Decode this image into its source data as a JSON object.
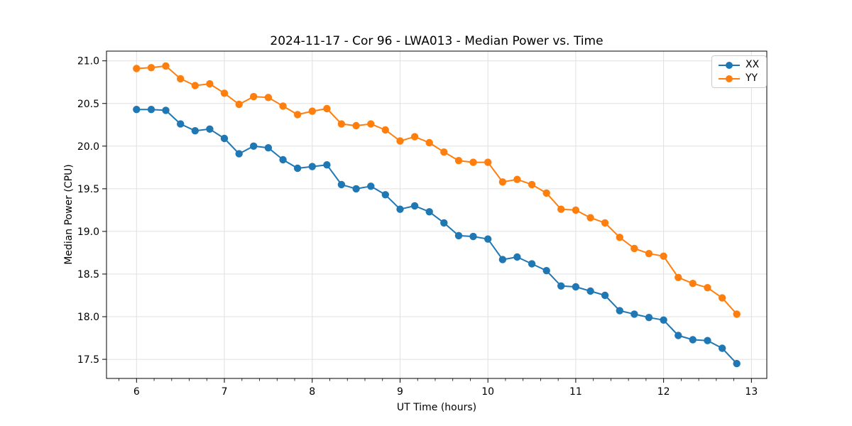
{
  "chart_data": {
    "type": "line",
    "title": "2024-11-17 - Cor 96 - LWA013 - Median Power vs. Time",
    "xlabel": "UT Time (hours)",
    "ylabel": "Median Power (CPU)",
    "xlim": [
      5.658,
      13.175
    ],
    "ylim": [
      17.276,
      21.114
    ],
    "x_ticks": [
      6,
      7,
      8,
      9,
      10,
      11,
      12,
      13
    ],
    "x_minor_tick_step": 0.2,
    "y_ticks": [
      17.5,
      18.0,
      18.5,
      19.0,
      19.5,
      20.0,
      20.5,
      21.0
    ],
    "grid": true,
    "grid_color": "#e0e0e0",
    "legend_position": "upper right",
    "x": [
      6.0,
      6.167,
      6.333,
      6.5,
      6.667,
      6.833,
      7.0,
      7.167,
      7.333,
      7.5,
      7.667,
      7.833,
      8.0,
      8.167,
      8.333,
      8.5,
      8.667,
      8.833,
      9.0,
      9.167,
      9.333,
      9.5,
      9.667,
      9.833,
      10.0,
      10.167,
      10.333,
      10.5,
      10.667,
      10.833,
      11.0,
      11.167,
      11.333,
      11.5,
      11.667,
      11.833,
      12.0,
      12.167,
      12.333,
      12.5,
      12.667,
      12.833
    ],
    "series": [
      {
        "name": "XX",
        "color": "#1f77b4",
        "values": [
          20.43,
          20.43,
          20.42,
          20.26,
          20.18,
          20.2,
          20.09,
          19.91,
          20.0,
          19.98,
          19.84,
          19.74,
          19.76,
          19.78,
          19.55,
          19.5,
          19.53,
          19.43,
          19.26,
          19.3,
          19.23,
          19.1,
          18.95,
          18.94,
          18.91,
          18.67,
          18.7,
          18.62,
          18.54,
          18.36,
          18.35,
          18.3,
          18.25,
          18.07,
          18.03,
          17.99,
          17.96,
          17.78,
          17.73,
          17.72,
          17.63,
          17.45
        ]
      },
      {
        "name": "YY",
        "color": "#ff7f0e",
        "values": [
          20.91,
          20.92,
          20.94,
          20.79,
          20.71,
          20.73,
          20.62,
          20.49,
          20.58,
          20.57,
          20.47,
          20.37,
          20.41,
          20.44,
          20.26,
          20.24,
          20.26,
          20.19,
          20.06,
          20.11,
          20.04,
          19.93,
          19.83,
          19.81,
          19.81,
          19.58,
          19.61,
          19.55,
          19.45,
          19.26,
          19.25,
          19.16,
          19.1,
          18.93,
          18.8,
          18.74,
          18.71,
          18.46,
          18.39,
          18.34,
          18.22,
          18.03
        ]
      }
    ]
  }
}
